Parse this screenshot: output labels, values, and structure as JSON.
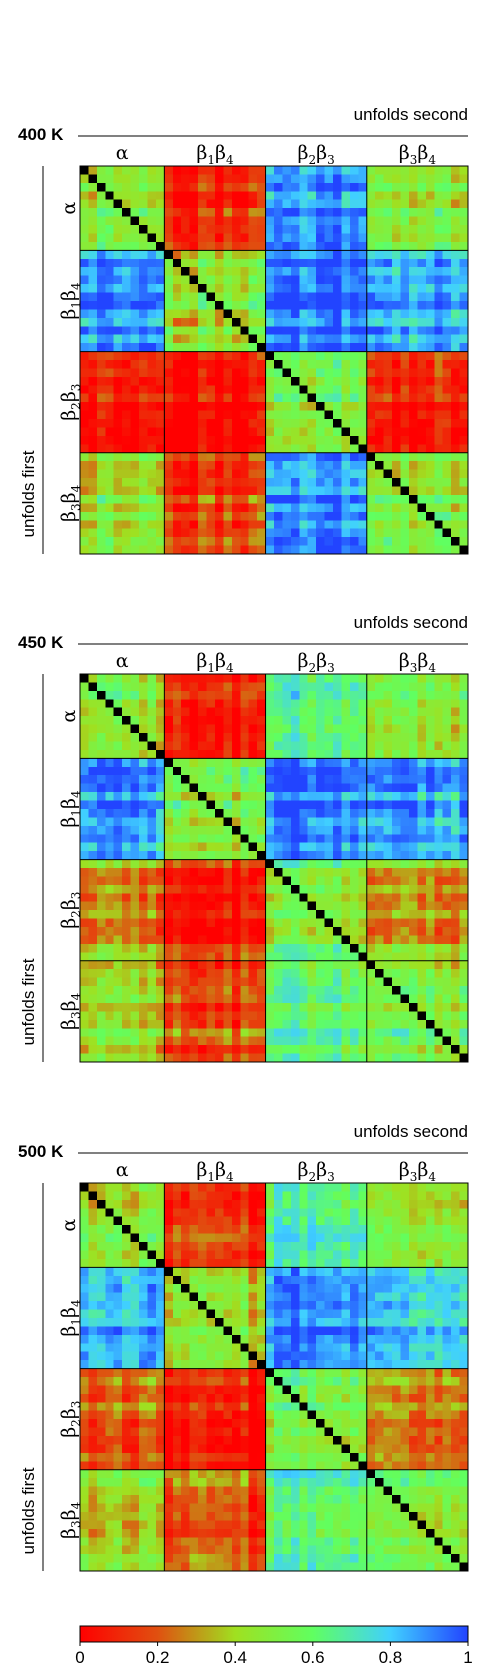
{
  "panels": [
    {
      "temperature": "400 K",
      "top_label": "unfolds second",
      "side_label": "unfolds first",
      "seed": 11
    },
    {
      "temperature": "450 K",
      "top_label": "unfolds second",
      "side_label": "unfolds first",
      "seed": 23
    },
    {
      "temperature": "500 K",
      "top_label": "unfolds second",
      "side_label": "unfolds first",
      "seed": 37
    }
  ],
  "chart_data": {
    "type": "heatmap",
    "matrix_size": 46,
    "diagonal_value": "black",
    "regions": [
      {
        "greek": "α",
        "sub": [],
        "index_range": [
          0,
          9
        ]
      },
      {
        "greek": "ββ",
        "letters": [
          "β",
          "β"
        ],
        "subs": [
          "1",
          "4"
        ],
        "index_range": [
          10,
          21
        ]
      },
      {
        "greek": "ββ",
        "letters": [
          "β",
          "β"
        ],
        "subs": [
          "2",
          "3"
        ],
        "index_range": [
          22,
          33
        ]
      },
      {
        "greek": "ββ",
        "letters": [
          "β",
          "β"
        ],
        "subs": [
          "3",
          "4"
        ],
        "index_range": [
          34,
          45
        ]
      }
    ],
    "approx_block_values": {
      "400 K": [
        [
          0.5,
          0.12,
          0.92,
          0.5
        ],
        [
          0.9,
          0.45,
          0.95,
          0.85
        ],
        [
          0.1,
          0.05,
          0.55,
          0.12
        ],
        [
          0.45,
          0.15,
          0.9,
          0.5
        ]
      ],
      "450 K": [
        [
          0.5,
          0.12,
          0.7,
          0.5
        ],
        [
          0.88,
          0.5,
          0.95,
          0.85
        ],
        [
          0.3,
          0.08,
          0.55,
          0.3
        ],
        [
          0.42,
          0.18,
          0.65,
          0.5
        ]
      ],
      "500 K": [
        [
          0.5,
          0.12,
          0.7,
          0.45
        ],
        [
          0.88,
          0.45,
          0.95,
          0.8
        ],
        [
          0.25,
          0.06,
          0.55,
          0.25
        ],
        [
          0.45,
          0.2,
          0.65,
          0.5
        ]
      ]
    },
    "colorbar": {
      "range": [
        0,
        1
      ],
      "ticks": [
        "0",
        "0.2",
        "0.4",
        "0.6",
        "0.8",
        "1"
      ],
      "colors": [
        "#ff0000",
        "#e05010",
        "#a0e020",
        "#60ff60",
        "#40d0ff",
        "#2244ff"
      ]
    }
  }
}
